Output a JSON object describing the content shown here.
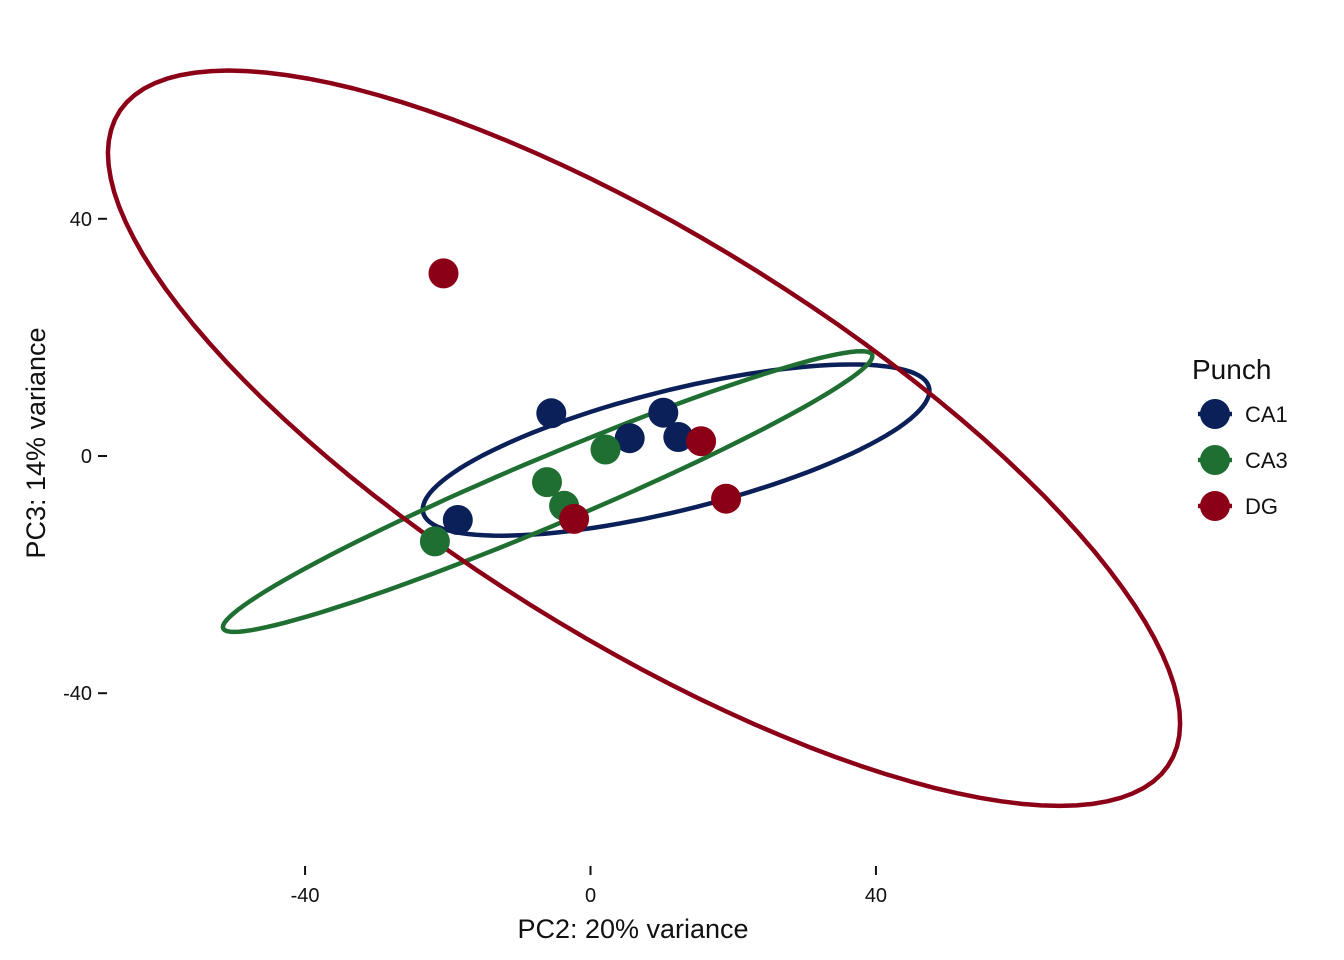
{
  "chart_data": {
    "type": "scatter",
    "xlabel": "PC2: 20% variance",
    "ylabel": "PC3: 14% variance",
    "xlim": [
      -52,
      74
    ],
    "ylim": [
      -68,
      72
    ],
    "x_ticks": [
      {
        "value": -40,
        "label": "-40"
      },
      {
        "value": 0,
        "label": "0"
      },
      {
        "value": 40,
        "label": "40"
      }
    ],
    "y_ticks": [
      {
        "value": 40,
        "label": "40"
      },
      {
        "value": 0,
        "label": "0"
      },
      {
        "value": -40,
        "label": "-40"
      }
    ],
    "grid": false,
    "legend": {
      "title": "Punch",
      "position": "right"
    },
    "series": [
      {
        "name": "CA1",
        "color": "#0b2059",
        "points": [
          {
            "x": -5.5,
            "y": 7.2
          },
          {
            "x": 5.5,
            "y": 3.0
          },
          {
            "x": 10.2,
            "y": 7.3
          },
          {
            "x": 12.3,
            "y": 3.2
          },
          {
            "x": -18.6,
            "y": -10.8
          }
        ],
        "ellipse": {
          "cx": 12,
          "cy": 1,
          "a": 37,
          "b": 10,
          "angle_deg": 17
        }
      },
      {
        "name": "CA3",
        "color": "#1f6f33",
        "points": [
          {
            "x": 2.1,
            "y": 1.1
          },
          {
            "x": -6.1,
            "y": -4.4
          },
          {
            "x": -3.7,
            "y": -8.4
          },
          {
            "x": -21.8,
            "y": -14.4
          }
        ],
        "ellipse": {
          "cx": -6,
          "cy": -6,
          "a": 51,
          "b": 5.5,
          "angle_deg": 27
        }
      },
      {
        "name": "DG",
        "color": "#8b0017",
        "points": [
          {
            "x": -20.6,
            "y": 30.8
          },
          {
            "x": 15.5,
            "y": 2.5
          },
          {
            "x": 19.0,
            "y": -7.2
          },
          {
            "x": -2.3,
            "y": -10.6
          }
        ],
        "ellipse": {
          "cx": 7.5,
          "cy": 3,
          "a": 92,
          "b": 32,
          "angle_deg": -38
        }
      }
    ]
  }
}
